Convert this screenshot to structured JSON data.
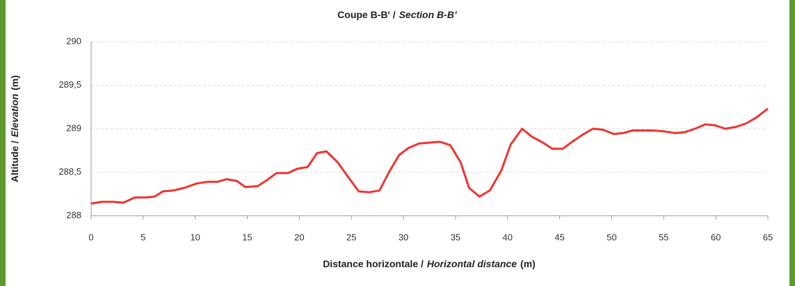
{
  "chart_data": {
    "type": "line",
    "title": [
      "Coupe B-B' /",
      "Section B-B’"
    ],
    "xlabel": [
      "Distance horizontale /",
      "Horizontal distance",
      "(m)"
    ],
    "ylabel": [
      "Altitude /",
      "Elevation",
      "(m)"
    ],
    "x": [
      0,
      1.07,
      2.1,
      3.1,
      4.2,
      5.3,
      6.1,
      6.9,
      7.9,
      8.95,
      10.15,
      11.15,
      12.15,
      13,
      14,
      14.8,
      16,
      16.9,
      17.8,
      18.9,
      19.8,
      20.8,
      21.7,
      22.6,
      23.7,
      24.6,
      25.7,
      26.7,
      27.7,
      28.7,
      29.6,
      30.5,
      31.5,
      32.5,
      33.5,
      34.5,
      35.5,
      36.3,
      37.3,
      38.3,
      39.4,
      40.3,
      41.4,
      42.3,
      43.4,
      44.3,
      45.3,
      46.2,
      47.2,
      48.2,
      49.1,
      50.2,
      51.1,
      52,
      53,
      54,
      55,
      56.1,
      57,
      58,
      59,
      59.9,
      60.9,
      61.9,
      62.9,
      63.9,
      65
    ],
    "values": [
      288.14,
      288.16,
      288.16,
      288.15,
      288.21,
      288.21,
      288.22,
      288.28,
      288.29,
      288.32,
      288.37,
      288.39,
      288.39,
      288.42,
      288.4,
      288.33,
      288.34,
      288.41,
      288.49,
      288.49,
      288.54,
      288.56,
      288.72,
      288.74,
      288.61,
      288.46,
      288.28,
      288.27,
      288.29,
      288.52,
      288.7,
      288.78,
      288.83,
      288.84,
      288.85,
      288.81,
      288.61,
      288.32,
      288.22,
      288.29,
      288.52,
      288.82,
      289,
      288.91,
      288.84,
      288.77,
      288.77,
      288.85,
      288.93,
      289,
      288.99,
      288.94,
      288.95,
      288.98,
      288.98,
      288.98,
      288.97,
      288.95,
      288.96,
      289,
      289.05,
      289.04,
      289,
      289.02,
      289.06,
      289.13,
      289.23
    ],
    "color": "#ee3430",
    "xlim": [
      0,
      65
    ],
    "xticks": [
      0,
      5,
      10,
      15,
      20,
      25,
      30,
      35,
      40,
      45,
      50,
      55,
      60,
      65
    ],
    "ylim": [
      288,
      290
    ],
    "yticks": [
      288,
      {
        "value": 288.5,
        "label": "288,5"
      },
      289,
      {
        "value": 289.5,
        "label": "289,5"
      },
      290
    ],
    "grid": true
  }
}
